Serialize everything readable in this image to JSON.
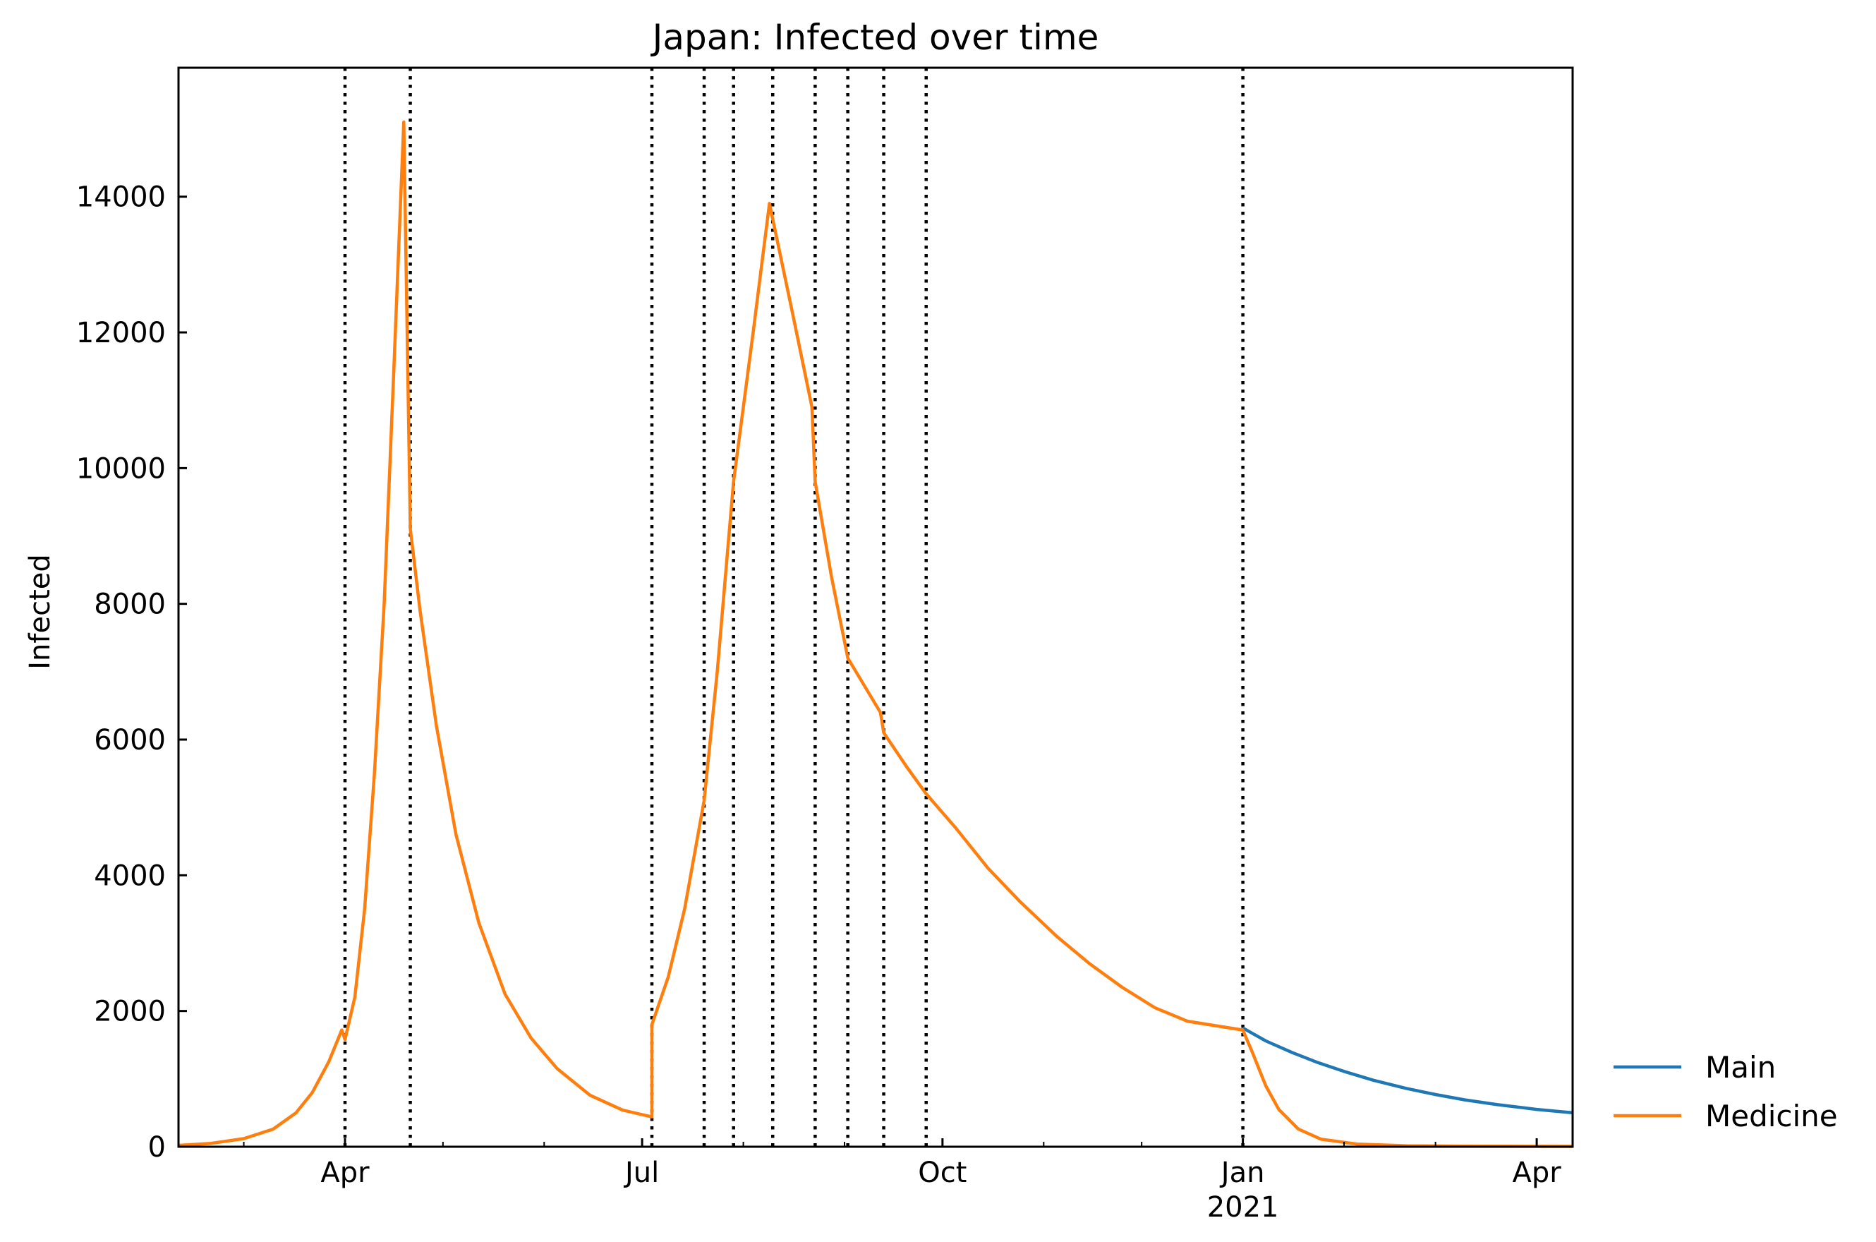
{
  "chart_data": {
    "type": "line",
    "title": "Japan: Infected over time",
    "xlabel": "",
    "ylabel": "Infected",
    "xlim": [
      "2020-02-10",
      "2021-04-12"
    ],
    "ylim": [
      0,
      15900
    ],
    "grid": false,
    "legend_position": "outside-right-bottom",
    "y_ticks": [
      0,
      2000,
      4000,
      6000,
      8000,
      10000,
      12000,
      14000
    ],
    "x_ticks": [
      {
        "date": "2020-04-01",
        "label": "Apr",
        "sublabel": ""
      },
      {
        "date": "2020-07-01",
        "label": "Jul",
        "sublabel": ""
      },
      {
        "date": "2020-10-01",
        "label": "Oct",
        "sublabel": ""
      },
      {
        "date": "2021-01-01",
        "label": "Jan",
        "sublabel": "2021"
      },
      {
        "date": "2021-04-01",
        "label": "Apr",
        "sublabel": ""
      }
    ],
    "x_minor_ticks": [
      "2020-03-01",
      "2020-05-01",
      "2020-06-01",
      "2020-08-01",
      "2020-09-01",
      "2020-11-01",
      "2020-12-01",
      "2021-02-01",
      "2021-03-01"
    ],
    "change_dates": [
      "2020-04-01",
      "2020-04-21",
      "2020-07-04",
      "2020-07-20",
      "2020-07-29",
      "2020-08-10",
      "2020-08-23",
      "2020-09-02",
      "2020-09-13",
      "2020-09-26",
      "2021-01-01"
    ],
    "series": [
      {
        "name": "Main",
        "color": "#1f77b4",
        "points": [
          [
            "2021-01-01",
            1750
          ],
          [
            "2021-01-08",
            1560
          ],
          [
            "2021-01-16",
            1390
          ],
          [
            "2021-01-24",
            1240
          ],
          [
            "2021-02-01",
            1110
          ],
          [
            "2021-02-10",
            980
          ],
          [
            "2021-02-20",
            860
          ],
          [
            "2021-03-01",
            770
          ],
          [
            "2021-03-10",
            690
          ],
          [
            "2021-03-20",
            620
          ],
          [
            "2021-04-01",
            550
          ],
          [
            "2021-04-12",
            500
          ]
        ]
      },
      {
        "name": "Medicine",
        "color": "#ff7f0e",
        "points": [
          [
            "2020-02-10",
            20
          ],
          [
            "2020-02-20",
            50
          ],
          [
            "2020-03-01",
            120
          ],
          [
            "2020-03-10",
            260
          ],
          [
            "2020-03-17",
            500
          ],
          [
            "2020-03-22",
            800
          ],
          [
            "2020-03-27",
            1250
          ],
          [
            "2020-03-31",
            1720
          ],
          [
            "2020-04-01",
            1580
          ],
          [
            "2020-04-04",
            2200
          ],
          [
            "2020-04-07",
            3500
          ],
          [
            "2020-04-10",
            5500
          ],
          [
            "2020-04-13",
            8000
          ],
          [
            "2020-04-16",
            11500
          ],
          [
            "2020-04-19",
            15100
          ],
          [
            "2020-04-21",
            9100
          ],
          [
            "2020-04-24",
            7900
          ],
          [
            "2020-04-29",
            6200
          ],
          [
            "2020-05-05",
            4600
          ],
          [
            "2020-05-12",
            3300
          ],
          [
            "2020-05-20",
            2250
          ],
          [
            "2020-05-28",
            1600
          ],
          [
            "2020-06-05",
            1150
          ],
          [
            "2020-06-15",
            760
          ],
          [
            "2020-06-25",
            540
          ],
          [
            "2020-07-04",
            440
          ],
          [
            "2020-07-04",
            1800
          ],
          [
            "2020-07-09",
            2500
          ],
          [
            "2020-07-14",
            3500
          ],
          [
            "2020-07-20",
            5100
          ],
          [
            "2020-07-24",
            7000
          ],
          [
            "2020-07-29",
            9800
          ],
          [
            "2020-08-04",
            12000
          ],
          [
            "2020-08-09",
            13900
          ],
          [
            "2020-08-16",
            12300
          ],
          [
            "2020-08-22",
            10900
          ],
          [
            "2020-08-23",
            9800
          ],
          [
            "2020-08-28",
            8400
          ],
          [
            "2020-09-02",
            7200
          ],
          [
            "2020-09-07",
            6800
          ],
          [
            "2020-09-12",
            6400
          ],
          [
            "2020-09-13",
            6100
          ],
          [
            "2020-09-20",
            5600
          ],
          [
            "2020-09-26",
            5200
          ],
          [
            "2020-10-05",
            4700
          ],
          [
            "2020-10-15",
            4100
          ],
          [
            "2020-10-25",
            3600
          ],
          [
            "2020-11-05",
            3100
          ],
          [
            "2020-11-15",
            2700
          ],
          [
            "2020-11-25",
            2350
          ],
          [
            "2020-12-05",
            2050
          ],
          [
            "2020-12-15",
            1850
          ],
          [
            "2021-01-01",
            1720
          ],
          [
            "2021-01-04",
            1380
          ],
          [
            "2021-01-08",
            900
          ],
          [
            "2021-01-12",
            550
          ],
          [
            "2021-01-18",
            260
          ],
          [
            "2021-01-25",
            110
          ],
          [
            "2021-02-05",
            40
          ],
          [
            "2021-02-20",
            15
          ],
          [
            "2021-03-10",
            8
          ],
          [
            "2021-04-12",
            5
          ]
        ]
      }
    ]
  }
}
